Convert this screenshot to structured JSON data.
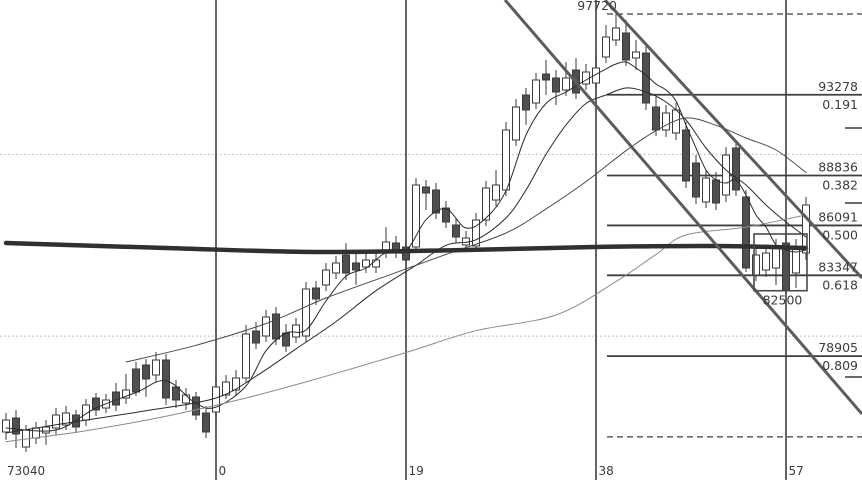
{
  "meta": {
    "app": "forex-candlestick-chart",
    "text_color": "#3c3c3c",
    "background": "#ffffff"
  },
  "chart_data": {
    "type": "candlestick",
    "title": "",
    "grid": {
      "vertical_line_color": "#4a4a4a",
      "round_level_color": "#b3b3b3",
      "round_levels": [
        90000,
        80000
      ]
    },
    "x_axis": {
      "gridlines": [
        {
          "t": 0,
          "label": "0"
        },
        {
          "t": 19,
          "label": "19"
        },
        {
          "t": 38,
          "label": "38"
        },
        {
          "t": 57,
          "label": "57"
        }
      ],
      "origin_price_label": "73040"
    },
    "xlim": [
      -21.6,
      64.6
    ],
    "ylim": [
      72090,
      98490
    ],
    "candles_ohlc": [
      [
        -21,
        74730,
        75775,
        74290,
        75390
      ],
      [
        -20,
        75500,
        75940,
        73850,
        74620
      ],
      [
        -19,
        73905,
        75115,
        73630,
        74840
      ],
      [
        -18,
        74400,
        75280,
        74070,
        74950
      ],
      [
        -17,
        74675,
        75390,
        74015,
        75005
      ],
      [
        -16,
        74950,
        76050,
        74565,
        75665
      ],
      [
        -15,
        75115,
        76160,
        74840,
        75775
      ],
      [
        -14,
        75665,
        75940,
        74675,
        75005
      ],
      [
        -13,
        75390,
        76545,
        75060,
        76215
      ],
      [
        -12,
        76600,
        76875,
        75610,
        75940
      ],
      [
        -11,
        76050,
        76820,
        75775,
        76490
      ],
      [
        -10,
        76930,
        77425,
        75885,
        76215
      ],
      [
        -9,
        76600,
        77920,
        76270,
        77040
      ],
      [
        -8,
        78195,
        78580,
        76710,
        76930
      ],
      [
        -7,
        78415,
        78745,
        76655,
        77645
      ],
      [
        -6,
        77865,
        79130,
        77480,
        78690
      ],
      [
        -5,
        78690,
        79020,
        76215,
        76600
      ],
      [
        -4,
        77205,
        77590,
        76050,
        76490
      ],
      [
        -3,
        76325,
        77150,
        75940,
        76765
      ],
      [
        -2,
        76655,
        76930,
        75390,
        75665
      ],
      [
        -1,
        75775,
        76160,
        74400,
        74730
      ],
      [
        0,
        75830,
        77590,
        75500,
        77205
      ],
      [
        1,
        76765,
        77865,
        76545,
        77480
      ],
      [
        2,
        77040,
        78140,
        76765,
        77700
      ],
      [
        3,
        77700,
        80615,
        77425,
        80120
      ],
      [
        4,
        80285,
        80780,
        79295,
        79625
      ],
      [
        5,
        80010,
        81440,
        79680,
        81055
      ],
      [
        6,
        81220,
        81605,
        79515,
        79845
      ],
      [
        7,
        80175,
        80670,
        79130,
        79460
      ],
      [
        8,
        79955,
        81000,
        79625,
        80615
      ],
      [
        9,
        80010,
        82980,
        79680,
        82595
      ],
      [
        10,
        82650,
        83035,
        81715,
        82045
      ],
      [
        11,
        82815,
        84025,
        82485,
        83640
      ],
      [
        12,
        83475,
        84410,
        83145,
        84025
      ],
      [
        13,
        84465,
        85125,
        83090,
        83475
      ],
      [
        14,
        84025,
        84740,
        82815,
        83640
      ],
      [
        15,
        83805,
        84575,
        83475,
        84190
      ],
      [
        16,
        83805,
        84575,
        83475,
        84190
      ],
      [
        17,
        84630,
        86005,
        84300,
        85180
      ],
      [
        18,
        85125,
        85510,
        84300,
        84630
      ],
      [
        19,
        84905,
        85290,
        83860,
        84190
      ],
      [
        20,
        84905,
        88700,
        84575,
        88315
      ],
      [
        21,
        88205,
        88590,
        86940,
        87875
      ],
      [
        22,
        88040,
        88425,
        86445,
        86775
      ],
      [
        23,
        87050,
        87435,
        85950,
        86280
      ],
      [
        24,
        86115,
        86500,
        85125,
        85455
      ],
      [
        25,
        85015,
        85785,
        84685,
        85400
      ],
      [
        26,
        84960,
        86775,
        84740,
        86390
      ],
      [
        27,
        86390,
        88535,
        86060,
        88150
      ],
      [
        28,
        87490,
        89140,
        87160,
        88315
      ],
      [
        29,
        88040,
        91780,
        87710,
        91340
      ],
      [
        30,
        90790,
        93045,
        90460,
        92605
      ],
      [
        31,
        93265,
        93650,
        91615,
        92440
      ],
      [
        32,
        92825,
        94475,
        92495,
        94090
      ],
      [
        33,
        94420,
        95190,
        93265,
        94090
      ],
      [
        34,
        94200,
        94640,
        92715,
        93430
      ],
      [
        35,
        93540,
        95080,
        93210,
        94200
      ],
      [
        36,
        94640,
        95300,
        93045,
        93375
      ],
      [
        37,
        93870,
        94970,
        93540,
        94530
      ],
      [
        38,
        93925,
        95465,
        93595,
        94750
      ],
      [
        39,
        95355,
        97115,
        95025,
        96455
      ],
      [
        40,
        96290,
        97720,
        95960,
        96950
      ],
      [
        41,
        96675,
        97390,
        94860,
        95190
      ],
      [
        42,
        95300,
        96290,
        94640,
        95630
      ],
      [
        43,
        95575,
        95960,
        92440,
        92825
      ],
      [
        44,
        92605,
        93155,
        91010,
        91340
      ],
      [
        45,
        91340,
        92715,
        90955,
        92275
      ],
      [
        46,
        91175,
        92825,
        90790,
        92440
      ],
      [
        47,
        91340,
        91780,
        88150,
        88535
      ],
      [
        48,
        89525,
        89965,
        87270,
        87655
      ],
      [
        49,
        87380,
        89140,
        87050,
        88700
      ],
      [
        50,
        88590,
        89030,
        86940,
        87325
      ],
      [
        51,
        87765,
        90405,
        87380,
        89965
      ],
      [
        52,
        90350,
        90790,
        87710,
        88040
      ],
      [
        53,
        87655,
        88040,
        83530,
        83750
      ],
      [
        54,
        83365,
        84905,
        83035,
        84465
      ],
      [
        55,
        83640,
        85015,
        83255,
        84575
      ],
      [
        56,
        83750,
        85345,
        82815,
        84905
      ],
      [
        57,
        85125,
        85565,
        82320,
        82540
      ],
      [
        58,
        83475,
        85345,
        82650,
        84905
      ],
      [
        59,
        84575,
        87655,
        84190,
        87215
      ]
    ],
    "candle_style": {
      "bull_fill": "#ffffff",
      "bear_fill": "#4f4f4f",
      "outline": "#3a3a3a",
      "body_width": 7
    },
    "moving_averages": [
      {
        "name": "ma-fast",
        "color": "#2b2b2b",
        "width": 1,
        "points": [
          [
            -21,
            74950
          ],
          [
            -16,
            74840
          ],
          [
            -12,
            76050
          ],
          [
            -8,
            76900
          ],
          [
            -5,
            77550
          ],
          [
            -2,
            76300
          ],
          [
            0,
            76100
          ],
          [
            3,
            77260
          ],
          [
            5,
            79200
          ],
          [
            7,
            80175
          ],
          [
            9,
            80340
          ],
          [
            11,
            81935
          ],
          [
            13,
            83300
          ],
          [
            15,
            83750
          ],
          [
            17,
            84600
          ],
          [
            19,
            84685
          ],
          [
            21,
            86400
          ],
          [
            23,
            87000
          ],
          [
            25,
            85950
          ],
          [
            27,
            86500
          ],
          [
            29,
            88000
          ],
          [
            31,
            91065
          ],
          [
            33,
            92800
          ],
          [
            35,
            93430
          ],
          [
            37,
            94090
          ],
          [
            39,
            94700
          ],
          [
            40,
            94970
          ],
          [
            41,
            95080
          ],
          [
            42,
            94750
          ],
          [
            43,
            94365
          ],
          [
            44,
            93870
          ],
          [
            45,
            93540
          ],
          [
            46,
            92935
          ],
          [
            47,
            91615
          ],
          [
            48,
            90350
          ],
          [
            49,
            89140
          ],
          [
            50,
            88590
          ],
          [
            51,
            88425
          ],
          [
            52,
            88590
          ],
          [
            53,
            87765
          ],
          [
            54,
            86665
          ],
          [
            55,
            86000
          ],
          [
            56,
            85015
          ],
          [
            57,
            84740
          ],
          [
            58,
            84630
          ],
          [
            59,
            84740
          ]
        ]
      },
      {
        "name": "ma-medium",
        "color": "#2b2b2b",
        "width": 1,
        "points": [
          [
            -21,
            74675
          ],
          [
            -14,
            75300
          ],
          [
            -7,
            75900
          ],
          [
            0,
            76600
          ],
          [
            4,
            77800
          ],
          [
            8,
            79300
          ],
          [
            12,
            80800
          ],
          [
            16,
            82500
          ],
          [
            20,
            83900
          ],
          [
            23,
            85000
          ],
          [
            26,
            85300
          ],
          [
            29,
            86500
          ],
          [
            31,
            88040
          ],
          [
            33,
            90000
          ],
          [
            35,
            91615
          ],
          [
            37,
            92800
          ],
          [
            39,
            93265
          ],
          [
            41,
            93650
          ],
          [
            43,
            93430
          ],
          [
            45,
            92880
          ],
          [
            47,
            91890
          ],
          [
            49,
            90350
          ],
          [
            51,
            89140
          ],
          [
            53,
            88315
          ],
          [
            55,
            87215
          ],
          [
            57,
            86280
          ],
          [
            59,
            85455
          ]
        ]
      },
      {
        "name": "ma-slow",
        "color": "#4a4a4a",
        "width": 1,
        "points": [
          [
            -9,
            78580
          ],
          [
            -2,
            79500
          ],
          [
            5,
            80700
          ],
          [
            11,
            82100
          ],
          [
            17,
            83300
          ],
          [
            23,
            84500
          ],
          [
            29,
            85675
          ],
          [
            33,
            87000
          ],
          [
            37,
            88500
          ],
          [
            41,
            90200
          ],
          [
            44,
            91300
          ],
          [
            47,
            92000
          ],
          [
            50,
            91600
          ],
          [
            53,
            90900
          ],
          [
            56,
            90240
          ],
          [
            59,
            89000
          ]
        ]
      },
      {
        "name": "ma-slowest",
        "color": "#8a8a8a",
        "width": 1,
        "points": [
          [
            -21,
            74200
          ],
          [
            -13,
            74800
          ],
          [
            -5,
            75600
          ],
          [
            3,
            76600
          ],
          [
            11,
            77800
          ],
          [
            19,
            79100
          ],
          [
            26,
            80300
          ],
          [
            34,
            81165
          ],
          [
            40,
            83000
          ],
          [
            44,
            84500
          ],
          [
            47,
            85565
          ],
          [
            53,
            86000
          ],
          [
            59,
            86665
          ]
        ]
      },
      {
        "name": "ma-major-thick",
        "color": "#303030",
        "width": 4.5,
        "points": [
          [
            -21,
            85125
          ],
          [
            -5,
            84850
          ],
          [
            10,
            84630
          ],
          [
            25,
            84740
          ],
          [
            38,
            84905
          ],
          [
            50,
            84960
          ],
          [
            59,
            84850
          ]
        ]
      }
    ],
    "fibonacci": {
      "start_t": 39.1,
      "line_color": "#3f3f3f",
      "swing_high_label": "97720",
      "levels": [
        {
          "ratio": "0.000",
          "price": 97720,
          "style": "dashed",
          "price_label": "",
          "ratio_label": ""
        },
        {
          "ratio": "0.191",
          "price": 93278,
          "style": "solid",
          "price_label": "93278",
          "ratio_label": "0.191"
        },
        {
          "ratio": "0.382",
          "price": 88836,
          "style": "solid",
          "price_label": "88836",
          "ratio_label": "0.382"
        },
        {
          "ratio": "0.500",
          "price": 86091,
          "style": "solid",
          "price_label": "86091",
          "ratio_label": "0.500"
        },
        {
          "ratio": "0.618",
          "price": 83347,
          "style": "solid",
          "price_label": "83347",
          "ratio_label": "0.618"
        },
        {
          "ratio": "0.809",
          "price": 78905,
          "style": "solid",
          "price_label": "78905",
          "ratio_label": "0.809"
        },
        {
          "ratio": "1.000",
          "price": 74463,
          "style": "dashed",
          "price_label": "",
          "ratio_label": ""
        }
      ]
    },
    "trendlines": [
      {
        "name": "downtrend-channel-upper",
        "t1": 28.9,
        "p1": 98490,
        "t2": 64.6,
        "p2": 75720,
        "color": "#5c5c5c",
        "width": 3
      },
      {
        "name": "downtrend-channel-lower",
        "t1": 38.9,
        "p1": 98490,
        "t2": 64.6,
        "p2": 83200,
        "color": "#5c5c5c",
        "width": 3
      }
    ],
    "range_box": {
      "t1": 53.8,
      "p1": 85620,
      "t2": 59.1,
      "p2": 82500,
      "label": "82500",
      "color": "#4a4a4a"
    },
    "right_edge_ticks": [
      91450,
      87325,
      77755
    ],
    "legend_position": "none"
  }
}
